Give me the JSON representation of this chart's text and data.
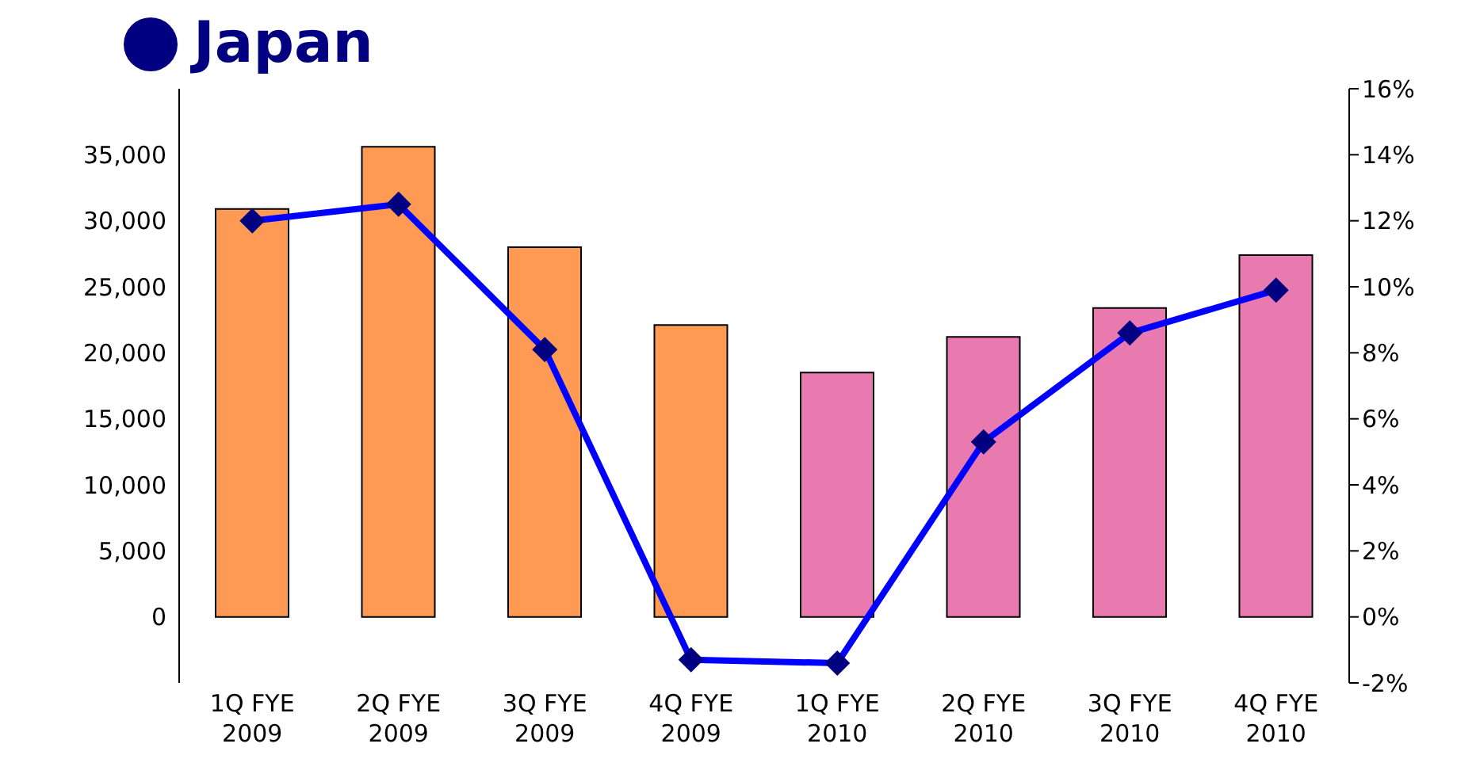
{
  "chart_data": {
    "type": "bar",
    "title": "Japan",
    "categories": [
      "1Q FYE 2009",
      "2Q FYE 2009",
      "3Q FYE 2009",
      "4Q FYE 2009",
      "1Q FYE 2010",
      "2Q FYE 2010",
      "3Q FYE 2010",
      "4Q FYE 2010"
    ],
    "series": [
      {
        "colors": [
          "#ff9a55",
          "#ff9a55",
          "#ff9a55",
          "#ff9a55",
          "#e87ab0",
          "#e87ab0",
          "#e87ab0",
          "#e87ab0"
        ],
        "values": [
          30900,
          35600,
          28000,
          22100,
          18500,
          21200,
          23400,
          27400
        ]
      },
      {
        "type": "line",
        "axis": "y2",
        "color": "#0000ff",
        "marker": "diamond",
        "values": [
          12.0,
          12.5,
          8.1,
          -1.3,
          -1.4,
          5.3,
          8.6,
          9.9
        ]
      }
    ],
    "ylim": [
      -5000,
      40000
    ],
    "yticks": [
      {
        "value": 0,
        "label": "0"
      },
      {
        "value": 5000,
        "label": "5,000"
      },
      {
        "value": 10000,
        "label": "10,000"
      },
      {
        "value": 15000,
        "label": "15,000"
      },
      {
        "value": 20000,
        "label": "20,000"
      },
      {
        "value": 25000,
        "label": "25,000"
      },
      {
        "value": 30000,
        "label": "30,000"
      },
      {
        "value": 35000,
        "label": "35,000"
      }
    ],
    "y2lim": [
      -2,
      16
    ],
    "y2ticks": [
      {
        "value": -2,
        "label": "-2%"
      },
      {
        "value": 0,
        "label": "0%"
      },
      {
        "value": 2,
        "label": "2%"
      },
      {
        "value": 4,
        "label": "4%"
      },
      {
        "value": 6,
        "label": "6%"
      },
      {
        "value": 8,
        "label": "8%"
      },
      {
        "value": 10,
        "label": "10%"
      },
      {
        "value": 12,
        "label": "12%"
      },
      {
        "value": 14,
        "label": "14%"
      },
      {
        "value": 16,
        "label": "16%"
      }
    ],
    "grid": false,
    "legend": false
  }
}
